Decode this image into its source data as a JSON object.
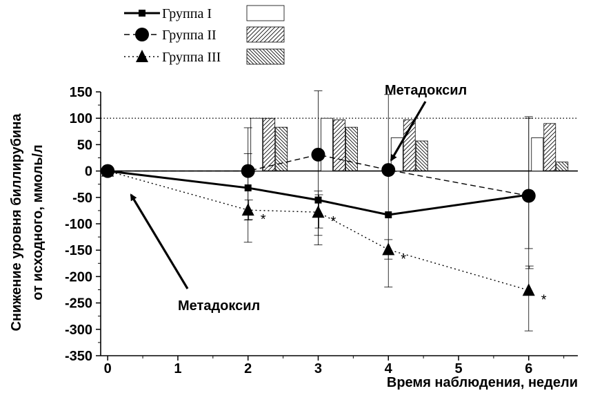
{
  "chart_data": {
    "type": "line",
    "xlabel": "Время наблюдения, недели",
    "ylabel_lines": [
      "Снижение уровня биллирубина",
      "от исходного, ммоль/л"
    ],
    "xlim": [
      -0.1,
      6.7
    ],
    "ylim": [
      -350,
      150
    ],
    "x_ticks": [
      0,
      1,
      2,
      3,
      4,
      5,
      6
    ],
    "y_ticks": [
      150,
      100,
      50,
      0,
      -50,
      -100,
      -150,
      -200,
      -250,
      -300,
      -350
    ],
    "reference_line_y": 100,
    "series": [
      {
        "name": "Группа I",
        "line_style": "solid",
        "marker": "square",
        "bar_pattern": "none",
        "x": [
          0,
          2,
          3,
          4,
          6
        ],
        "y": [
          0,
          -32,
          -55,
          -83,
          -45
        ]
      },
      {
        "name": "Группа II",
        "line_style": "dashed",
        "marker": "circle",
        "bar_pattern": "hatch-forward",
        "x": [
          0,
          2,
          3,
          4,
          6
        ],
        "y": [
          0,
          0,
          31,
          2,
          -47
        ]
      },
      {
        "name": "Группа III",
        "line_style": "dotted",
        "marker": "triangle",
        "bar_pattern": "hatch-backward",
        "x": [
          0,
          2,
          3,
          4,
          6
        ],
        "y": [
          0,
          -74,
          -78,
          -149,
          -226
        ]
      }
    ],
    "error_bars": [
      {
        "x": 2,
        "low": -135,
        "high": 82
      },
      {
        "x": 2,
        "low": -93,
        "high": 33
      },
      {
        "x": 2.01,
        "low": -92,
        "high": -55
      },
      {
        "x": 3,
        "low": -140,
        "high": 152
      },
      {
        "x": 3,
        "low": -122,
        "high": -38
      },
      {
        "x": 3.01,
        "low": -108,
        "high": -45
      },
      {
        "x": 4,
        "low": -220,
        "high": 145
      },
      {
        "x": 4,
        "low": -167,
        "high": -130
      },
      {
        "x": 6,
        "low": -303,
        "high": 103
      },
      {
        "x": 6,
        "low": -147,
        "high": 100
      },
      {
        "x": 6.01,
        "low": -185,
        "high": -180
      }
    ],
    "bars": [
      {
        "week": 2,
        "values": [
          100,
          100,
          83
        ]
      },
      {
        "week": 3,
        "values": [
          100,
          97,
          83
        ]
      },
      {
        "week": 4,
        "values": [
          63,
          97,
          57
        ]
      },
      {
        "week": 6,
        "values": [
          63,
          90,
          17
        ]
      }
    ],
    "significance_marks": [
      {
        "x": 2,
        "y": -74,
        "text": "*"
      },
      {
        "x": 3,
        "y": -78,
        "text": "*"
      },
      {
        "x": 4,
        "y": -149,
        "text": "*"
      },
      {
        "x": 6,
        "y": -226,
        "text": "*"
      }
    ],
    "annotations": [
      {
        "text": "Метадоксил",
        "x": 4,
        "y": 2
      },
      {
        "text": "Метадоксил",
        "x": 0.3,
        "y": -40
      }
    ],
    "legend": {
      "position": "top-left"
    }
  }
}
